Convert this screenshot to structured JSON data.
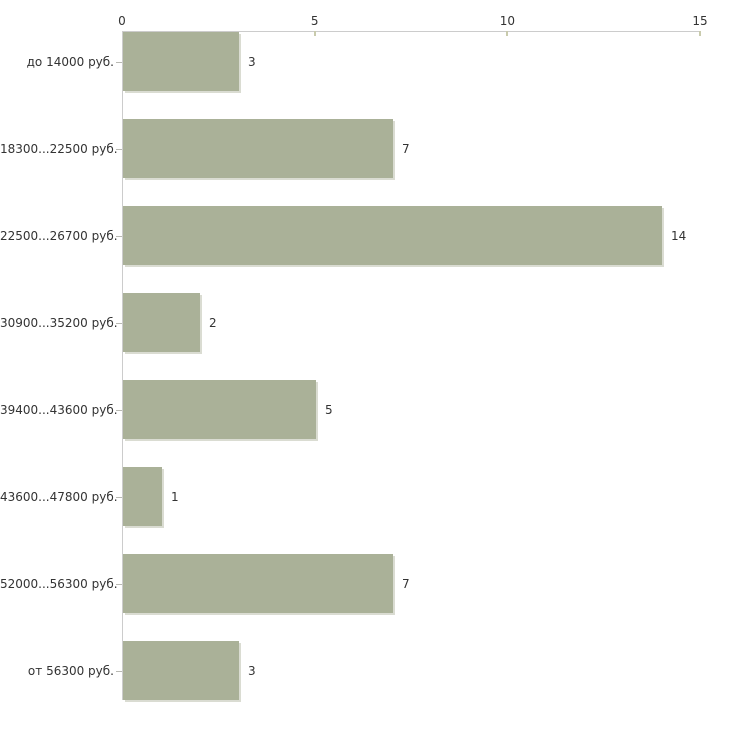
{
  "chart_data": {
    "type": "bar",
    "orientation": "horizontal",
    "title": "",
    "xlabel": "",
    "ylabel": "",
    "categories": [
      "до 14000 руб.",
      "18300...22500 руб.",
      "22500...26700 руб.",
      "30900...35200 руб.",
      "39400...43600 руб.",
      "43600...47800 руб.",
      "52000...56300 руб.",
      "от 56300 руб."
    ],
    "values": [
      3,
      7,
      14,
      2,
      5,
      1,
      7,
      3
    ],
    "xlim": [
      0,
      15
    ],
    "x_ticks": [
      "0",
      "5",
      "10",
      "15"
    ],
    "x_axis_position": "top",
    "grid": "off",
    "legend": "none",
    "value_labels_shown": true,
    "colors": {
      "bar_fill": "#AAB198",
      "bar_edge": "#DADCD2",
      "axis_line": "#CCCCCC",
      "tick_mark": "#C9CBAD",
      "category_tick": "#B9B9B3",
      "text": "#333333",
      "background": "#FFFFFF"
    }
  }
}
